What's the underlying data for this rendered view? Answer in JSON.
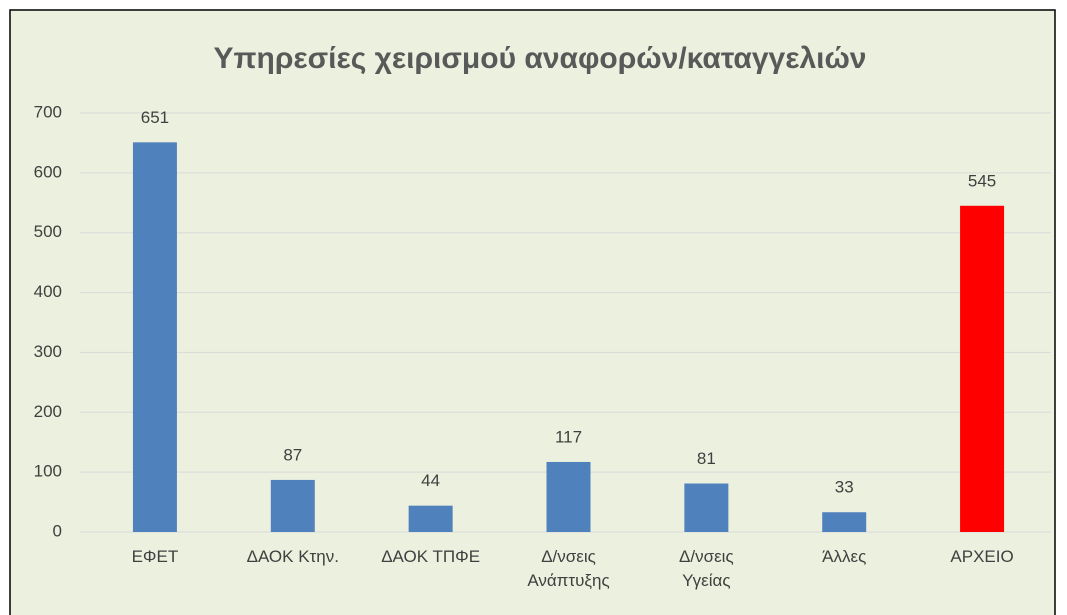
{
  "chart_data": {
    "type": "bar",
    "title": "Υπηρεσίες χειρισμού αναφορών/καταγγελιών",
    "categories": [
      "ΕΦΕΤ",
      "ΔΑΟΚ Κτην.",
      "ΔΑΟΚ ΤΠΦΕ",
      "Δ/νσεις\nΑνάπτυξης",
      "Δ/νσεις\nΥγείας",
      "Άλλες",
      "ΑΡΧΕΙΟ"
    ],
    "values": [
      651,
      87,
      44,
      117,
      81,
      33,
      545
    ],
    "colors": [
      "#4f81bd",
      "#4f81bd",
      "#4f81bd",
      "#4f81bd",
      "#4f81bd",
      "#4f81bd",
      "#ff0000"
    ],
    "ylim": [
      0,
      700
    ],
    "yticks": [
      0,
      100,
      200,
      300,
      400,
      500,
      600,
      700
    ],
    "grid": true
  }
}
